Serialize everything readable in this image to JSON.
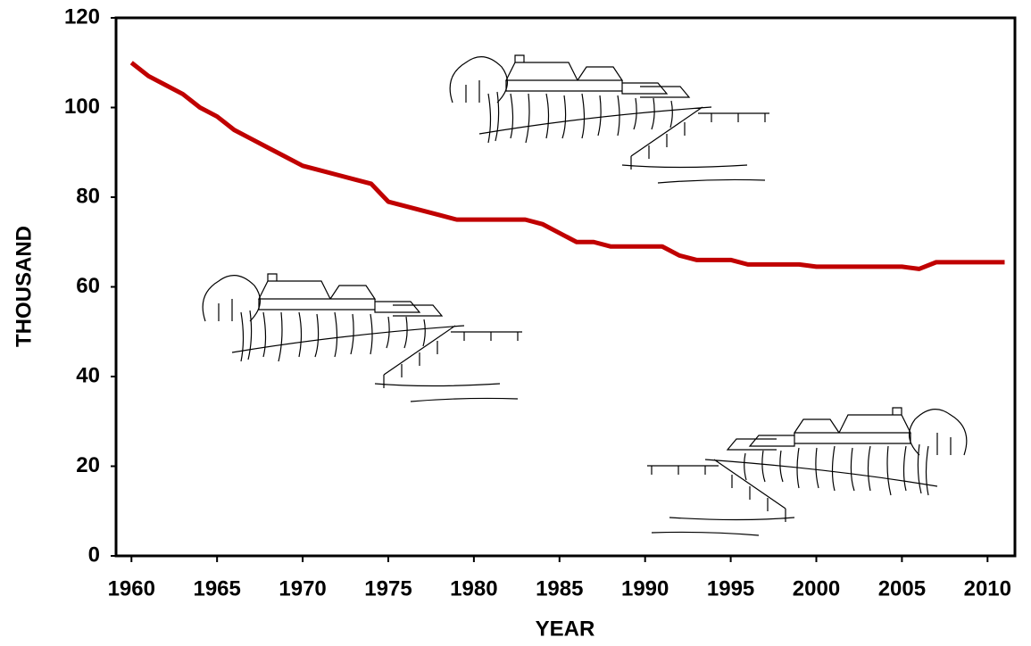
{
  "chart_data": {
    "type": "line",
    "ylabel": "THOUSAND",
    "xlabel": "YEAR",
    "x": [
      1960,
      1961,
      1962,
      1963,
      1964,
      1965,
      1966,
      1967,
      1968,
      1969,
      1970,
      1971,
      1972,
      1973,
      1974,
      1975,
      1976,
      1977,
      1978,
      1979,
      1980,
      1981,
      1982,
      1983,
      1984,
      1985,
      1986,
      1987,
      1988,
      1989,
      1990,
      1991,
      1992,
      1993,
      1994,
      1995,
      1996,
      1997,
      1998,
      1999,
      2000,
      2001,
      2002,
      2003,
      2004,
      2005,
      2006,
      2007,
      2008,
      2009,
      2010,
      2011
    ],
    "series": [
      {
        "color": "#c00000",
        "values": [
          110,
          107,
          105,
          103,
          100,
          98,
          95,
          93,
          91,
          89,
          87,
          86,
          85,
          84,
          83,
          79,
          78,
          77,
          76,
          75,
          75,
          75,
          75,
          75,
          74,
          72,
          70,
          70,
          69,
          69,
          69,
          69,
          67,
          66,
          66,
          66,
          65,
          65,
          65,
          65,
          64.5,
          64.5,
          64.5,
          64.5,
          64.5,
          64.5,
          64,
          65.5,
          65.5,
          65.5,
          65.5,
          65.5
        ]
      }
    ],
    "xlim": [
      1959.1,
      2011.6
    ],
    "xticks": [
      1960,
      1965,
      1970,
      1975,
      1980,
      1985,
      1990,
      1995,
      2000,
      2005,
      2010
    ],
    "ylim": [
      0,
      120
    ],
    "yticks": [
      0,
      20,
      40,
      60,
      80,
      100,
      120
    ],
    "grid": false
  }
}
